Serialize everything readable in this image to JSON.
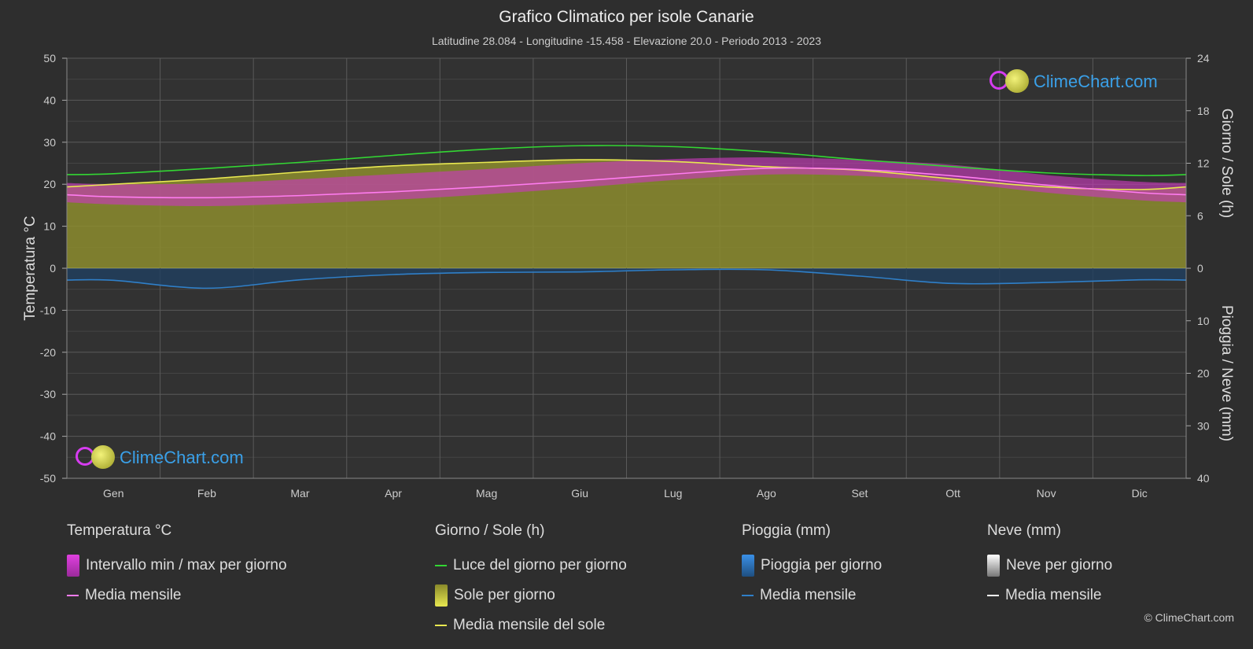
{
  "chart_data": {
    "type": "area",
    "title": "Grafico Climatico per isole Canarie",
    "subtitle": "Latitudine 28.084 - Longitudine -15.458 - Elevazione 20.0 - Periodo 2013 - 2023",
    "categories": [
      "Gen",
      "Feb",
      "Mar",
      "Apr",
      "Mag",
      "Giu",
      "Lug",
      "Ago",
      "Set",
      "Ott",
      "Nov",
      "Dic"
    ],
    "y_left": {
      "label": "Temperatura °C",
      "ticks": [
        "50",
        "40",
        "30",
        "20",
        "10",
        "0",
        "-10",
        "-20",
        "-30",
        "-40",
        "-50"
      ],
      "range": [
        -50,
        50
      ]
    },
    "y_right_top": {
      "label": "Giorno / Sole (h)",
      "ticks": [
        "24",
        "18",
        "12",
        "6",
        "0"
      ],
      "range": [
        0,
        24
      ]
    },
    "y_right_bottom": {
      "label": "Pioggia / Neve (mm)",
      "ticks": [
        "0",
        "10",
        "20",
        "30",
        "40"
      ],
      "range": [
        0,
        40
      ]
    },
    "grid": true,
    "series": [
      {
        "name": "Luce del giorno per giorno",
        "axis": "sun",
        "values": [
          10.8,
          11.4,
          12.1,
          12.9,
          13.6,
          14.0,
          13.9,
          13.3,
          12.4,
          11.6,
          10.9,
          10.6
        ]
      },
      {
        "name": "Media mensile del sole",
        "axis": "sun",
        "values": [
          9.6,
          10.2,
          11.0,
          11.7,
          12.1,
          12.4,
          12.2,
          11.6,
          11.2,
          10.2,
          9.3,
          9.0
        ]
      },
      {
        "name": "Media mensile",
        "axis": "temp",
        "values": [
          17.0,
          16.8,
          17.3,
          18.2,
          19.4,
          20.8,
          22.4,
          23.8,
          23.5,
          22.0,
          19.8,
          18.0
        ]
      },
      {
        "name": "Intervallo min / max per giorno (min)",
        "axis": "temp",
        "values": [
          15.2,
          14.8,
          15.4,
          16.3,
          17.6,
          19.2,
          21.0,
          22.3,
          22.0,
          20.4,
          18.0,
          16.2
        ]
      },
      {
        "name": "Intervallo min / max per giorno (max)",
        "axis": "temp",
        "values": [
          20.0,
          20.2,
          21.2,
          22.4,
          23.6,
          25.0,
          26.0,
          26.4,
          25.8,
          24.6,
          22.2,
          20.6
        ]
      },
      {
        "name": "Media mensile (pioggia)",
        "axis": "rain",
        "values": [
          2.3,
          3.8,
          2.2,
          1.2,
          0.8,
          0.7,
          0.3,
          0.3,
          1.5,
          2.9,
          2.7,
          2.2
        ]
      }
    ],
    "colors": {
      "daylight": "#33d633",
      "sun_fill": "#8c8c2e",
      "sun_line": "#e8e850",
      "temp_band": "#c63bb8",
      "temp_line": "#ff7cf0",
      "rain": "#2f7fc8",
      "background": "#2e2e2e"
    }
  },
  "legend": {
    "temperature": {
      "title": "Temperatura °C",
      "items": [
        "Intervallo min / max per giorno",
        "Media mensile"
      ]
    },
    "sun": {
      "title": "Giorno / Sole (h)",
      "items": [
        "Luce del giorno per giorno",
        "Sole per giorno",
        "Media mensile del sole"
      ]
    },
    "rain": {
      "title": "Pioggia (mm)",
      "items": [
        "Pioggia per giorno",
        "Media mensile"
      ]
    },
    "snow": {
      "title": "Neve (mm)",
      "items": [
        "Neve per giorno",
        "Media mensile"
      ]
    }
  },
  "logo_text": "ClimeChart.com",
  "copyright": "© ClimeChart.com"
}
